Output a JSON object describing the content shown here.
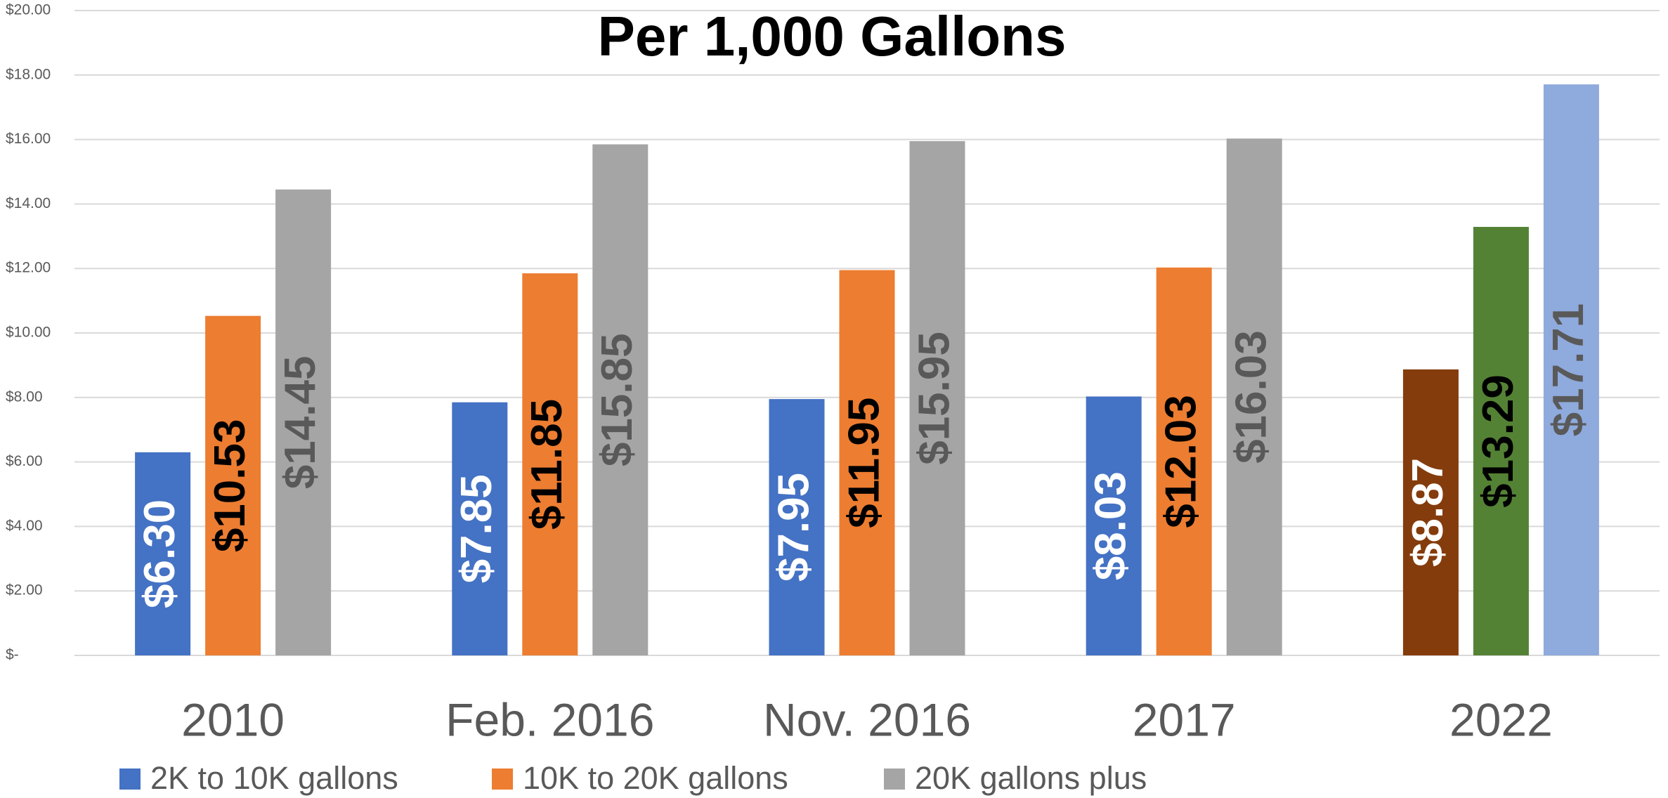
{
  "chart_data": {
    "type": "bar",
    "title": "Per 1,000 Gallons",
    "categories": [
      "2010",
      "Feb. 2016",
      "Nov. 2016",
      "2017",
      "2022"
    ],
    "series": [
      {
        "name": "2K to 10K gallons",
        "color": "#4472c4",
        "colors": [
          "#4472c4",
          "#4472c4",
          "#4472c4",
          "#4472c4",
          "#843c0c"
        ],
        "label_color": "#ffffff",
        "values": [
          6.3,
          7.85,
          7.95,
          8.03,
          8.87
        ],
        "value_labels": [
          "$6.30",
          "$7.85",
          "$7.95",
          "$8.03",
          "$8.87"
        ]
      },
      {
        "name": "10K to 20K gallons",
        "color": "#ed7d31",
        "colors": [
          "#ed7d31",
          "#ed7d31",
          "#ed7d31",
          "#ed7d31",
          "#548235"
        ],
        "label_color": "#000000",
        "values": [
          10.53,
          11.85,
          11.95,
          12.03,
          13.29
        ],
        "value_labels": [
          "$10.53",
          "$11.85",
          "$11.95",
          "$12.03",
          "$13.29"
        ]
      },
      {
        "name": "20K gallons plus",
        "color": "#a5a5a5",
        "colors": [
          "#a5a5a5",
          "#a5a5a5",
          "#a5a5a5",
          "#a5a5a5",
          "#8faadc"
        ],
        "label_color": "#595959",
        "values": [
          14.45,
          15.85,
          15.95,
          16.03,
          17.71
        ],
        "value_labels": [
          "$14.45",
          "$15.85",
          "$15.95",
          "$16.03",
          "$17.71"
        ]
      }
    ],
    "ylim": [
      0,
      20
    ],
    "yticks": [
      {
        "value": 0,
        "label": "$-"
      },
      {
        "value": 2,
        "label": "$2.00"
      },
      {
        "value": 4,
        "label": "$4.00"
      },
      {
        "value": 6,
        "label": "$6.00"
      },
      {
        "value": 8,
        "label": "$8.00"
      },
      {
        "value": 10,
        "label": "$10.00"
      },
      {
        "value": 12,
        "label": "$12.00"
      },
      {
        "value": 14,
        "label": "$14.00"
      },
      {
        "value": 16,
        "label": "$16.00"
      },
      {
        "value": 18,
        "label": "$18.00"
      },
      {
        "value": 20,
        "label": "$20.00"
      }
    ],
    "grid": true,
    "legend": "bottom"
  }
}
